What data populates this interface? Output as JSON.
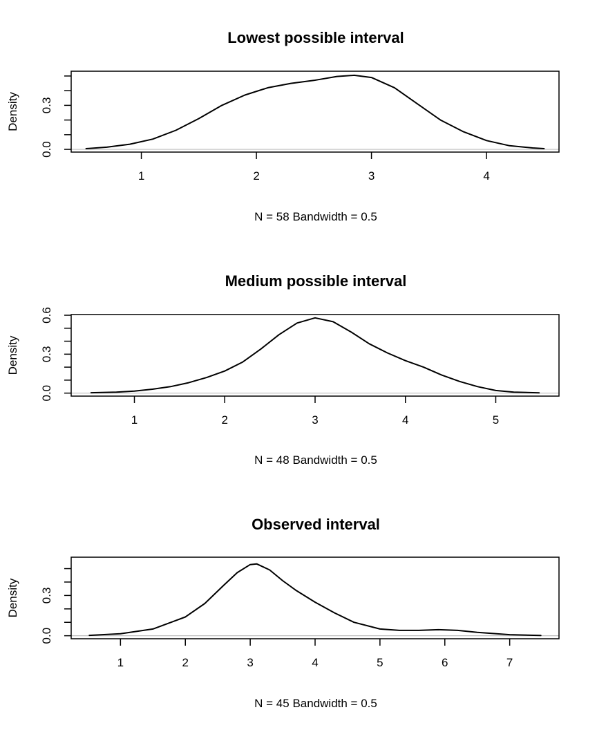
{
  "colors": {
    "curve": "#000000",
    "baseline": "#bebebe",
    "frame": "#000000",
    "background": "#ffffff"
  },
  "chart_data": [
    {
      "type": "line",
      "title": "Lowest possible interval",
      "ylabel": "Density",
      "xlabel": "N = 58   Bandwidth = 0.5",
      "xlim": [
        0.39,
        4.63
      ],
      "ylim": [
        -0.0185,
        0.5327
      ],
      "xticks": [
        "1",
        "2",
        "3",
        "4"
      ],
      "yticks": [
        "0.0",
        "0.3"
      ],
      "y_minor_ticks": [
        0.0,
        0.1,
        0.2,
        0.3,
        0.4,
        0.5
      ],
      "x": [
        0.52,
        0.7,
        0.9,
        1.1,
        1.3,
        1.5,
        1.7,
        1.9,
        2.1,
        2.3,
        2.5,
        2.7,
        2.85,
        3.0,
        3.2,
        3.4,
        3.6,
        3.8,
        4.0,
        4.2,
        4.4,
        4.5
      ],
      "y": [
        0.005,
        0.015,
        0.035,
        0.07,
        0.13,
        0.21,
        0.3,
        0.37,
        0.42,
        0.45,
        0.47,
        0.497,
        0.505,
        0.49,
        0.42,
        0.31,
        0.2,
        0.12,
        0.06,
        0.025,
        0.01,
        0.005
      ]
    },
    {
      "type": "line",
      "title": "Medium possible interval",
      "ylabel": "Density",
      "xlabel": "N = 48   Bandwidth = 0.5",
      "xlim": [
        0.3,
        5.7
      ],
      "ylim": [
        -0.0231,
        0.6054
      ],
      "xticks": [
        "1",
        "2",
        "3",
        "4",
        "5"
      ],
      "yticks": [
        "0.0",
        "0.3",
        "0.6"
      ],
      "y_minor_ticks": [
        0.0,
        0.1,
        0.2,
        0.3,
        0.4,
        0.5,
        0.6
      ],
      "x": [
        0.52,
        0.8,
        1.0,
        1.2,
        1.4,
        1.6,
        1.8,
        2.0,
        2.2,
        2.4,
        2.6,
        2.8,
        3.0,
        3.2,
        3.4,
        3.6,
        3.8,
        4.0,
        4.2,
        4.4,
        4.6,
        4.8,
        5.0,
        5.2,
        5.48
      ],
      "y": [
        0.003,
        0.007,
        0.015,
        0.03,
        0.05,
        0.08,
        0.12,
        0.17,
        0.24,
        0.34,
        0.45,
        0.54,
        0.58,
        0.55,
        0.47,
        0.38,
        0.31,
        0.25,
        0.2,
        0.14,
        0.09,
        0.05,
        0.02,
        0.008,
        0.002
      ]
    },
    {
      "type": "line",
      "title": "Observed interval",
      "ylabel": "Density",
      "xlabel": "N = 45   Bandwidth = 0.5",
      "xlim": [
        0.24,
        7.76
      ],
      "ylim": [
        -0.0224,
        0.5852
      ],
      "xticks": [
        "1",
        "2",
        "3",
        "4",
        "5",
        "6",
        "7"
      ],
      "yticks": [
        "0.0",
        "0.3"
      ],
      "y_minor_ticks": [
        0.0,
        0.1,
        0.2,
        0.3,
        0.4,
        0.5
      ],
      "x": [
        0.52,
        1.0,
        1.5,
        2.0,
        2.3,
        2.6,
        2.8,
        3.0,
        3.1,
        3.3,
        3.5,
        3.7,
        4.0,
        4.3,
        4.6,
        5.0,
        5.3,
        5.6,
        5.9,
        6.2,
        6.5,
        7.0,
        7.48
      ],
      "y": [
        0.003,
        0.015,
        0.05,
        0.14,
        0.24,
        0.38,
        0.47,
        0.53,
        0.535,
        0.49,
        0.41,
        0.34,
        0.25,
        0.17,
        0.1,
        0.05,
        0.04,
        0.04,
        0.045,
        0.04,
        0.025,
        0.008,
        0.002
      ]
    }
  ]
}
